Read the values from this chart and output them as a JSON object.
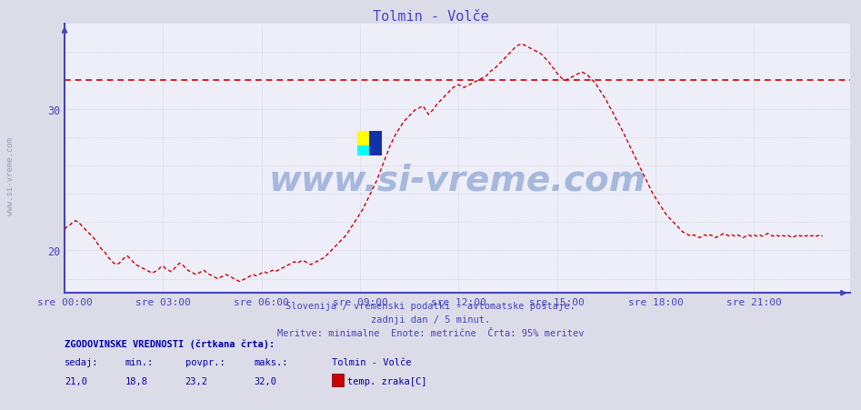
{
  "title": "Tolmin - Volče",
  "title_color": "#4444cc",
  "bg_color": "#dcdce8",
  "plot_bg_color": "#eeeef8",
  "grid_color": "#c8c8d8",
  "axis_color": "#4444bb",
  "line_color": "#cc0000",
  "hline_color": "#cc0000",
  "hline_value": 32.0,
  "ylabel_color": "#4444bb",
  "xlabel_color": "#4444bb",
  "yticks": [
    20,
    30
  ],
  "ylim": [
    17.0,
    36.0
  ],
  "xlim_max": 287,
  "xtick_labels": [
    "sre 00:00",
    "sre 03:00",
    "sre 06:00",
    "sre 09:00",
    "sre 12:00",
    "sre 15:00",
    "sre 18:00",
    "sre 21:00"
  ],
  "xtick_positions": [
    0,
    36,
    72,
    108,
    144,
    180,
    216,
    252
  ],
  "subtitle1": "Slovenija / vremenski podatki - avtomatske postaje.",
  "subtitle2": "zadnji dan / 5 minut.",
  "subtitle3": "Meritve: minimalne  Enote: metrične  Črta: 95% meritev",
  "subtitle_color": "#4444bb",
  "footer_label1": "ZGODOVINSKE VREDNOSTI (črtkana črta):",
  "footer_col_headers": [
    "sedaj:",
    "min.:",
    "povpr.:",
    "maks.:",
    "Tolmin - Volče"
  ],
  "footer_col_values": [
    "21,0",
    "18,8",
    "23,2",
    "32,0"
  ],
  "footer_legend_label": "temp. zraka[C]",
  "footer_color": "#0000aa",
  "watermark": "www.si-vreme.com",
  "temp_data": [
    21.5,
    21.7,
    21.8,
    22.0,
    22.1,
    22.0,
    21.8,
    21.6,
    21.4,
    21.2,
    21.0,
    20.8,
    20.5,
    20.2,
    20.0,
    19.8,
    19.5,
    19.3,
    19.1,
    19.0,
    19.1,
    19.3,
    19.5,
    19.6,
    19.4,
    19.2,
    19.0,
    18.9,
    18.8,
    18.7,
    18.6,
    18.5,
    18.4,
    18.5,
    18.6,
    18.8,
    18.9,
    18.7,
    18.6,
    18.5,
    18.7,
    18.9,
    19.1,
    19.0,
    18.8,
    18.6,
    18.5,
    18.4,
    18.3,
    18.4,
    18.5,
    18.6,
    18.4,
    18.3,
    18.2,
    18.1,
    18.0,
    18.1,
    18.2,
    18.3,
    18.2,
    18.1,
    18.0,
    17.9,
    17.8,
    17.9,
    18.0,
    18.1,
    18.2,
    18.3,
    18.2,
    18.3,
    18.4,
    18.5,
    18.4,
    18.5,
    18.6,
    18.5,
    18.6,
    18.7,
    18.8,
    18.9,
    19.0,
    19.1,
    19.2,
    19.1,
    19.2,
    19.3,
    19.2,
    19.1,
    19.0,
    19.1,
    19.2,
    19.3,
    19.4,
    19.5,
    19.7,
    19.9,
    20.1,
    20.3,
    20.5,
    20.7,
    20.9,
    21.1,
    21.4,
    21.7,
    22.0,
    22.3,
    22.6,
    22.9,
    23.3,
    23.7,
    24.1,
    24.5,
    24.9,
    25.4,
    25.9,
    26.4,
    26.9,
    27.4,
    27.8,
    28.2,
    28.5,
    28.8,
    29.1,
    29.3,
    29.5,
    29.7,
    29.9,
    30.0,
    30.1,
    30.2,
    29.9,
    29.6,
    29.8,
    30.0,
    30.3,
    30.5,
    30.7,
    30.9,
    31.1,
    31.3,
    31.5,
    31.6,
    31.7,
    31.6,
    31.5,
    31.6,
    31.7,
    31.8,
    31.9,
    32.0,
    32.1,
    32.2,
    32.3,
    32.5,
    32.7,
    32.8,
    33.0,
    33.2,
    33.4,
    33.6,
    33.8,
    34.0,
    34.2,
    34.4,
    34.5,
    34.6,
    34.5,
    34.4,
    34.3,
    34.2,
    34.1,
    34.0,
    33.9,
    33.7,
    33.5,
    33.3,
    33.0,
    32.8,
    32.5,
    32.3,
    32.1,
    32.0,
    32.1,
    32.2,
    32.3,
    32.4,
    32.5,
    32.6,
    32.5,
    32.4,
    32.2,
    32.0,
    31.8,
    31.5,
    31.2,
    30.9,
    30.6,
    30.2,
    29.9,
    29.5,
    29.1,
    28.8,
    28.4,
    28.0,
    27.6,
    27.2,
    26.8,
    26.4,
    26.0,
    25.6,
    25.2,
    24.8,
    24.4,
    24.0,
    23.7,
    23.4,
    23.1,
    22.8,
    22.5,
    22.3,
    22.1,
    21.9,
    21.7,
    21.5,
    21.3,
    21.2,
    21.1,
    21.0,
    21.1,
    21.0,
    20.9,
    21.0,
    21.1,
    21.0,
    21.1,
    21.0,
    20.9,
    21.0,
    21.1,
    21.2,
    21.1,
    21.0,
    21.1,
    21.0,
    21.1,
    21.0,
    20.9,
    21.0,
    21.1,
    21.0,
    21.1,
    21.0,
    21.1,
    21.0,
    21.1,
    21.2,
    21.1,
    21.0,
    21.1,
    21.0,
    21.1,
    21.0,
    21.1,
    21.0,
    20.9,
    21.0,
    21.1,
    21.0,
    21.1,
    21.0,
    21.1,
    21.0,
    21.1,
    21.0,
    21.1,
    21.0
  ]
}
